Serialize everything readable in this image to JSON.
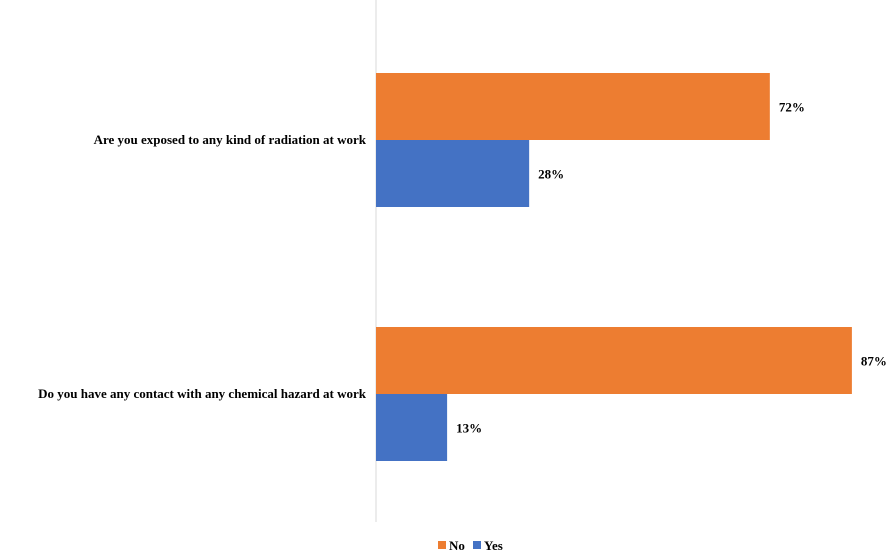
{
  "chart_data": {
    "type": "bar",
    "orientation": "horizontal",
    "categories": [
      "Are you exposed to any kind of radiation at work",
      "Do you have any contact with any chemical hazard at work"
    ],
    "series": [
      {
        "name": "No",
        "values": [
          72,
          87
        ],
        "labels": [
          "72%",
          "87%"
        ],
        "color": "#ED7D31"
      },
      {
        "name": "Yes",
        "values": [
          28,
          13
        ],
        "labels": [
          "28%",
          "13%"
        ],
        "color": "#4472C4"
      }
    ],
    "xlim": [
      0,
      100
    ],
    "grid": false,
    "legend": "bottom-center"
  }
}
